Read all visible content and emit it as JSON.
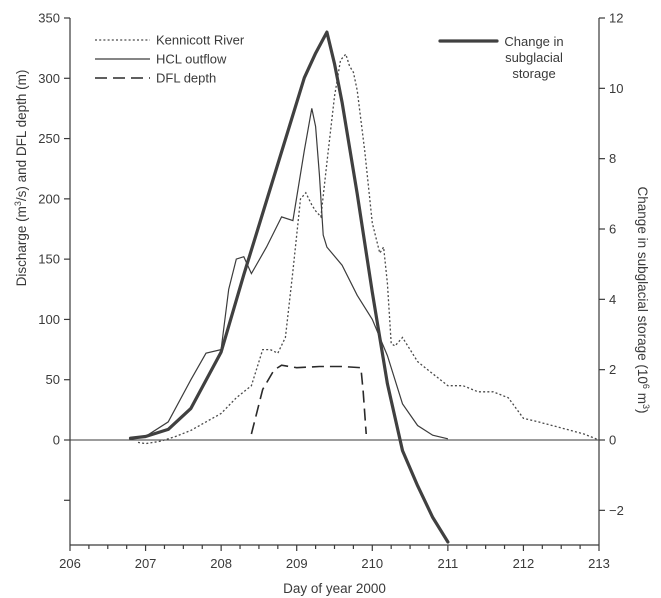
{
  "chart_data": {
    "type": "line",
    "title": "",
    "xlabel": "Day of year 2000",
    "ylabel_left": "Discharge (m³/s) and DFL depth (m)",
    "ylabel_left_parts": [
      "Discharge (m",
      "3",
      "/s) and DFL depth (m)"
    ],
    "ylabel_right": "Change in subglacial storage (10⁶ m³)",
    "ylabel_right_parts": [
      "Change in subglacial storage (10",
      "6",
      " m",
      "3",
      ")"
    ],
    "xlim": [
      206,
      213
    ],
    "ylim_left": [
      -87.5,
      350
    ],
    "ylim_right": [
      -3,
      12
    ],
    "x_ticks": [
      206,
      207,
      208,
      209,
      210,
      211,
      212,
      213
    ],
    "y_left_ticks": [
      0,
      50,
      100,
      150,
      200,
      250,
      300,
      350
    ],
    "y_right_ticks": [
      -2,
      0,
      2,
      4,
      6,
      8,
      10,
      12
    ],
    "legend_left": "top-left",
    "legend_right": "top-right",
    "grid": false,
    "series": [
      {
        "name": "Kennicott River",
        "axis": "left",
        "style": "dotted",
        "x": [
          206.9,
          207.0,
          207.2,
          207.4,
          207.6,
          207.8,
          208.0,
          208.2,
          208.4,
          208.55,
          208.65,
          208.75,
          208.85,
          208.95,
          209.05,
          209.12,
          209.2,
          209.25,
          209.32,
          209.4,
          209.5,
          209.58,
          209.65,
          209.7,
          209.75,
          209.8,
          209.9,
          210.0,
          210.1,
          210.15,
          210.2,
          210.25,
          210.3,
          210.4,
          210.5,
          210.6,
          210.7,
          210.8,
          210.9,
          211.0,
          211.2,
          211.4,
          211.6,
          211.8,
          212.0,
          212.2,
          212.5,
          212.8,
          213.0
        ],
        "y": [
          -2,
          -3,
          -1,
          3,
          8,
          15,
          22,
          35,
          45,
          75,
          75,
          72,
          85,
          140,
          200,
          205,
          195,
          190,
          185,
          230,
          285,
          315,
          320,
          310,
          305,
          290,
          240,
          180,
          155,
          160,
          130,
          80,
          78,
          85,
          75,
          65,
          60,
          55,
          50,
          45,
          45,
          40,
          40,
          35,
          18,
          15,
          10,
          5,
          0
        ]
      },
      {
        "name": "HCL outflow",
        "axis": "left",
        "style": "solid-thin",
        "x": [
          206.8,
          207.0,
          207.3,
          207.6,
          207.8,
          208.0,
          208.1,
          208.2,
          208.3,
          208.4,
          208.6,
          208.8,
          208.95,
          209.1,
          209.2,
          209.25,
          209.3,
          209.35,
          209.4,
          209.6,
          209.8,
          210.0,
          210.2,
          210.4,
          210.6,
          210.8,
          211.0
        ],
        "y": [
          1,
          3,
          15,
          50,
          72,
          75,
          125,
          150,
          152,
          138,
          160,
          185,
          182,
          240,
          275,
          260,
          220,
          170,
          160,
          145,
          120,
          100,
          70,
          30,
          12,
          4,
          1
        ]
      },
      {
        "name": "DFL depth",
        "axis": "left",
        "style": "dashed",
        "x": [
          208.4,
          208.55,
          208.7,
          208.8,
          209.0,
          209.3,
          209.6,
          209.85,
          209.88,
          209.92
        ],
        "y": [
          5,
          42,
          58,
          62,
          60,
          61,
          61,
          60,
          40,
          5
        ]
      },
      {
        "name": "Change in subglacial storage",
        "axis": "right",
        "style": "solid-thick",
        "x": [
          206.8,
          207.0,
          207.3,
          207.6,
          208.0,
          208.3,
          208.6,
          208.9,
          209.1,
          209.25,
          209.4,
          209.5,
          209.6,
          209.8,
          210.0,
          210.2,
          210.4,
          210.6,
          210.8,
          211.0
        ],
        "y": [
          0.05,
          0.1,
          0.3,
          0.9,
          2.5,
          4.7,
          6.8,
          8.9,
          10.3,
          11.0,
          11.6,
          10.7,
          9.6,
          7.0,
          4.2,
          1.6,
          -0.3,
          -1.3,
          -2.2,
          -2.9
        ]
      }
    ]
  }
}
